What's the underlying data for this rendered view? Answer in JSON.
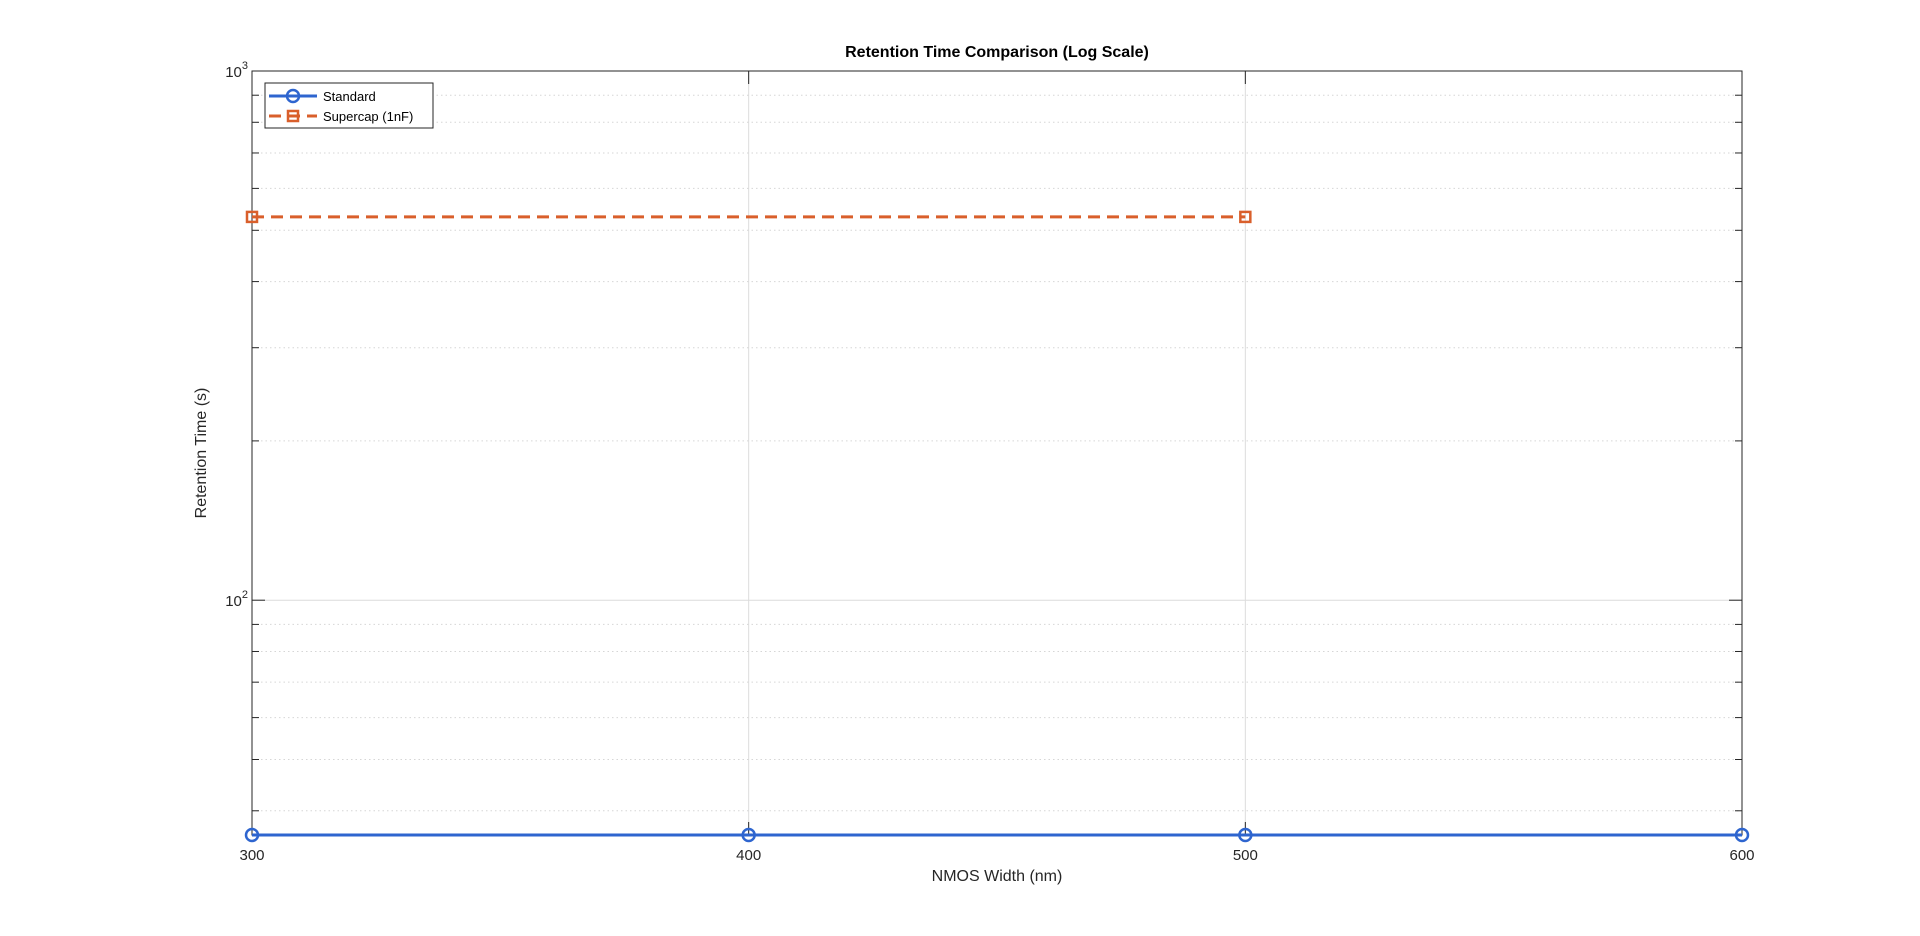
{
  "chart_data": {
    "type": "line",
    "title": "Retention Time Comparison (Log Scale)",
    "xlabel": "NMOS Width (nm)",
    "ylabel": "Retention Time (s)",
    "xlim": [
      300,
      600
    ],
    "ylim": [
      36,
      1000
    ],
    "yscale": "log",
    "grid": true,
    "legend_location": "top-left",
    "x_ticks": [
      {
        "value": 300,
        "label": "300"
      },
      {
        "value": 400,
        "label": "400"
      },
      {
        "value": 500,
        "label": "500"
      },
      {
        "value": 600,
        "label": "600"
      }
    ],
    "y_ticks": [
      {
        "value": 100,
        "base": "10",
        "exp": "2"
      },
      {
        "value": 1000,
        "base": "10",
        "exp": "3"
      }
    ],
    "series": [
      {
        "name": "Standard",
        "color": "#2e65cf",
        "linestyle": "solid",
        "marker": "circle",
        "x": [
          300,
          400,
          500,
          600
        ],
        "y": [
          36,
          36,
          36,
          36
        ]
      },
      {
        "name": "Supercap (1nF)",
        "color": "#d95f2b",
        "linestyle": "dashed",
        "marker": "square",
        "x": [
          300,
          500
        ],
        "y": [
          530,
          530
        ]
      }
    ]
  }
}
